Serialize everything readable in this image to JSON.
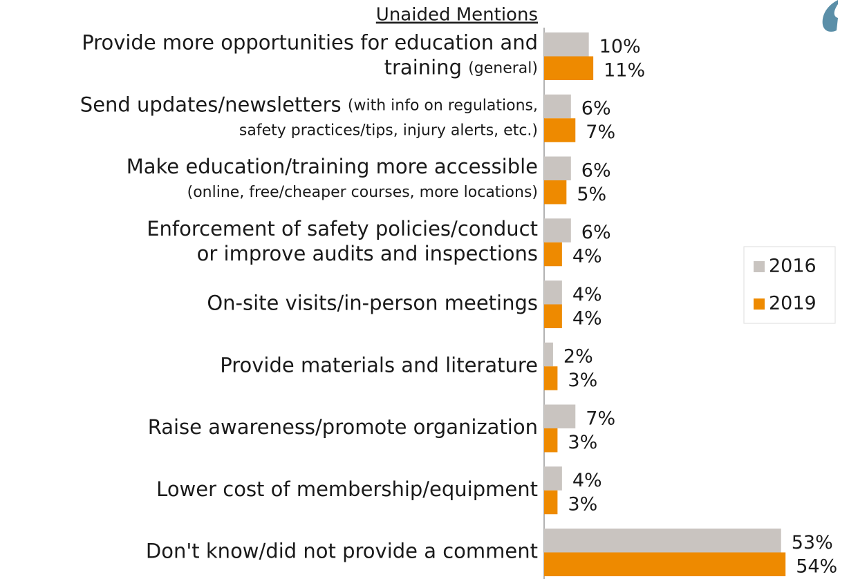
{
  "chart_data": {
    "type": "hbar",
    "title": "Unaided Mentions",
    "categories": [
      [
        "Provide more opportunities for education and",
        "training (general)"
      ],
      [
        "Send updates/newsletters (with info on regulations,",
        "safety practices/tips, injury alerts, etc.)"
      ],
      [
        "Make education/training more accessible",
        "(online, free/cheaper courses, more locations)"
      ],
      [
        "Enforcement of safety policies/conduct",
        "or improve audits and inspections"
      ],
      [
        "On-site visits/in-person meetings"
      ],
      [
        "Provide materials and literature"
      ],
      [
        "Raise awareness/promote organization"
      ],
      [
        "Lower cost of membership/equipment"
      ],
      [
        "Don't know/did not provide a comment"
      ]
    ],
    "series": [
      {
        "name": "2016",
        "color": "#c9c4c0",
        "values": [
          10,
          6,
          6,
          6,
          4,
          2,
          7,
          4,
          53
        ],
        "value_labels": [
          "10%",
          "6%",
          "6%",
          "6%",
          "4%",
          "2%",
          "7%",
          "4%",
          "53%"
        ]
      },
      {
        "name": "2019",
        "color": "#ee8a00",
        "values": [
          11,
          7,
          5,
          4,
          4,
          3,
          3,
          3,
          54
        ],
        "value_labels": [
          "11%",
          "7%",
          "5%",
          "4%",
          "4%",
          "3%",
          "3%",
          "3%",
          "54%"
        ]
      }
    ],
    "xlim": [
      0,
      60
    ],
    "legend": "right"
  }
}
